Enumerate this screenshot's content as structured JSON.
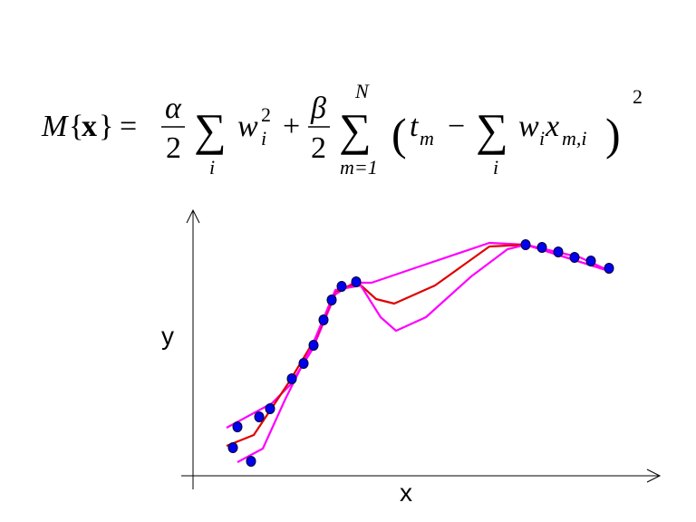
{
  "formula": {
    "M": "M",
    "lbrace": "{",
    "bx": "x",
    "rbrace": "}",
    "eq": "=",
    "alpha": "α",
    "two": "2",
    "sum": "∑",
    "i": "i",
    "w": "w",
    "plus": "+",
    "beta": "β",
    "N": "N",
    "m_eq_1": "m=1",
    "lparen": "(",
    "t": "t",
    "m": "m",
    "minus": "−",
    "x": "x",
    "mi": "m,i",
    "rparen": ")"
  },
  "chart_data": {
    "type": "scatter-line",
    "x_label": "x",
    "y_label": "y",
    "xlim": [
      0,
      10.2
    ],
    "ylim": [
      0,
      11.8
    ],
    "points": {
      "color": "#0000ee",
      "x": [
        0.88,
        0.98,
        1.28,
        1.46,
        1.7,
        2.18,
        2.44,
        2.66,
        2.88,
        3.06,
        3.28,
        3.6,
        7.34,
        7.7,
        8.06,
        8.42,
        8.78,
        9.18
      ],
      "y": [
        1.24,
        2.16,
        0.64,
        2.6,
        2.96,
        4.28,
        4.96,
        5.76,
        6.88,
        7.76,
        8.36,
        8.56,
        10.2,
        10.08,
        9.88,
        9.64,
        9.48,
        9.16
      ]
    },
    "series": [
      {
        "color": "#ff00ff",
        "x": [
          0.74,
          1.74,
          2.14,
          2.64,
          3.14,
          3.54,
          3.94,
          4.94,
          6.54,
          7.34,
          8.54,
          9.24
        ],
        "values": [
          2.12,
          3.2,
          4.0,
          5.6,
          8.0,
          8.52,
          8.52,
          9.2,
          10.28,
          10.2,
          9.64,
          9.0
        ]
      },
      {
        "color": "#e00000",
        "x": [
          0.74,
          1.34,
          2.14,
          2.74,
          3.14,
          3.64,
          4.04,
          4.44,
          5.34,
          6.54,
          7.34,
          9.24
        ],
        "values": [
          1.32,
          1.8,
          4.2,
          6.2,
          8.12,
          8.52,
          7.8,
          7.6,
          8.4,
          10.12,
          10.2,
          9.0
        ]
      },
      {
        "color": "#ff00ff",
        "x": [
          0.98,
          1.54,
          2.04,
          2.64,
          3.14,
          3.7,
          4.14,
          4.48,
          5.14,
          6.14,
          6.94,
          7.34,
          9.24
        ],
        "values": [
          0.6,
          1.2,
          3.4,
          5.8,
          8.2,
          8.4,
          7.0,
          6.4,
          7.0,
          8.8,
          10.0,
          10.2,
          9.0
        ]
      }
    ]
  }
}
